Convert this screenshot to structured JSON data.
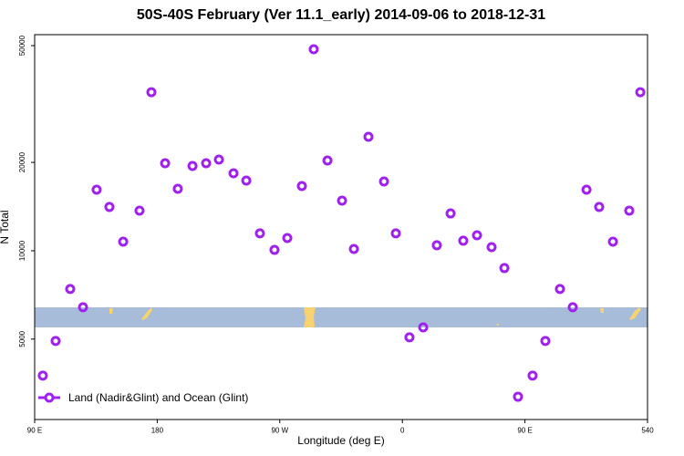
{
  "chart_data": {
    "type": "scatter",
    "title": "50S-40S February (Ver 11.1_early)   2014-09-06 to 2018-12-31",
    "x_label": "Longitude (deg E)",
    "y_label": "N Total",
    "log_y": true,
    "xlim": [
      90,
      540
    ],
    "ylim": [
      2660,
      54500
    ],
    "xticks": [
      {
        "value": 90,
        "label": "90 E"
      },
      180,
      {
        "value": 270,
        "label": "90 W"
      },
      {
        "value": 360,
        "label": "0"
      },
      {
        "value": 450,
        "label": "90 E"
      },
      540
    ],
    "yticks": [
      5000,
      10000,
      20000,
      50000
    ],
    "legend_position": "bottom-left",
    "series": [
      {
        "name": "Land (Nadir&Glint) and Ocean (Glint)",
        "color": "#a020f0",
        "x": [
          96,
          105.4,
          116.1,
          125.5,
          135.5,
          144.9,
          155,
          167,
          175.7,
          185.8,
          195.1,
          205.9,
          215.9,
          225.3,
          236,
          245.4,
          255.4,
          266.1,
          275.5,
          286.2,
          294.9,
          305,
          315.7,
          324.4,
          335.1,
          346.5,
          355.2,
          365.2,
          375.3,
          385.3,
          395.4,
          404.7,
          414.8,
          425.5,
          434.9,
          444.9,
          455.6,
          465,
          475.7,
          485.1,
          495.2,
          504.5,
          514.6,
          526.6,
          534.7
        ],
        "values": [
          3755,
          4927,
          7408,
          6420,
          16150,
          14100,
          10740,
          13700,
          34700,
          19870,
          16260,
          19450,
          19870,
          20450,
          18360,
          17340,
          11460,
          10070,
          11050,
          16620,
          48600,
          20300,
          14820,
          10140,
          24450,
          17220,
          11460,
          5070,
          5480,
          10440,
          13400,
          10820,
          11290,
          10290,
          8730,
          3180,
          3755,
          4927,
          7408,
          6420,
          16150,
          14100,
          10740,
          13700,
          34700
        ]
      }
    ]
  }
}
